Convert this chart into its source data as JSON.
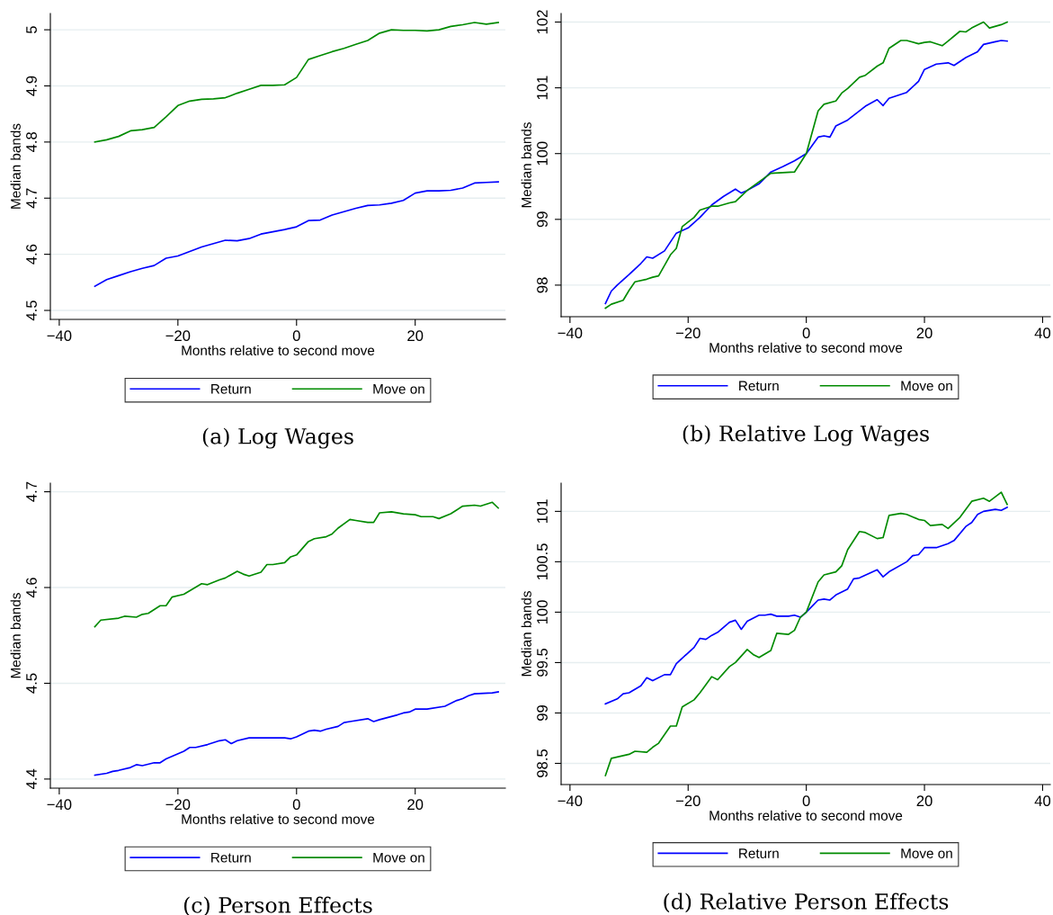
{
  "chart_data": [
    {
      "type": "line",
      "title": "(a) Log Wages",
      "xlabel": "Months relative to second move",
      "ylabel": "Median bands",
      "xlim": [
        -41.5,
        35.2
      ],
      "xticks": [
        -40,
        -20,
        0,
        20
      ],
      "ylim": [
        4.484,
        5.029
      ],
      "yticks": [
        4.5,
        4.6,
        4.7,
        4.8,
        4.9,
        5
      ],
      "grid": "y",
      "legend": "bottom",
      "line_style": "solid",
      "marker": "none",
      "series": [
        {
          "name": "Return",
          "color": "#0000ff",
          "x": [
            -34,
            -32,
            -30,
            -28,
            -26,
            -24,
            -22,
            -20,
            -18,
            -16,
            -14,
            -12,
            -10,
            -8,
            -6,
            -4,
            -2,
            0,
            2,
            4,
            6,
            8,
            10,
            12,
            14,
            16,
            18,
            20,
            22,
            24,
            26,
            28,
            30,
            32,
            34
          ],
          "values": [
            4.543,
            4.555,
            4.562,
            4.569,
            4.575,
            4.58,
            4.593,
            4.597,
            4.605,
            4.613,
            4.619,
            4.625,
            4.624,
            4.628,
            4.636,
            4.64,
            4.644,
            4.649,
            4.66,
            4.661,
            4.67,
            4.676,
            4.682,
            4.687,
            4.688,
            4.691,
            4.696,
            4.709,
            4.713,
            4.713,
            4.714,
            4.718,
            4.727,
            4.728,
            4.729
          ]
        },
        {
          "name": "Move on",
          "color": "#008b00",
          "x": [
            -34,
            -32,
            -30,
            -28,
            -26,
            -24,
            -22,
            -20,
            -18,
            -16,
            -14,
            -12,
            -10,
            -8,
            -6,
            -4,
            -2,
            0,
            2,
            4,
            6,
            8,
            10,
            12,
            14,
            16,
            18,
            20,
            22,
            24,
            26,
            28,
            30,
            32,
            34
          ],
          "values": [
            4.8,
            4.804,
            4.81,
            4.82,
            4.822,
            4.826,
            4.845,
            4.865,
            4.873,
            4.876,
            4.877,
            4.879,
            4.887,
            4.894,
            4.901,
            4.901,
            4.902,
            4.915,
            4.947,
            4.954,
            4.961,
            4.967,
            4.974,
            4.981,
            4.994,
            5.0,
            4.999,
            4.999,
            4.998,
            5.0,
            5.006,
            5.009,
            5.013,
            5.01,
            5.013
          ]
        }
      ]
    },
    {
      "type": "line",
      "title": "(b) Relative Log Wages",
      "xlabel": "Months relative to second move",
      "ylabel": "Median bands",
      "xlim": [
        -41.5,
        41.3
      ],
      "xticks": [
        -40,
        -20,
        0,
        20,
        40
      ],
      "ylim": [
        97.52,
        102.13
      ],
      "yticks": [
        98,
        99,
        100,
        101,
        102
      ],
      "grid": "y",
      "legend": "bottom",
      "line_style": "solid",
      "marker": "none",
      "series": [
        {
          "name": "Return",
          "color": "#0000ff",
          "x": [
            -34,
            -33,
            -32,
            -30,
            -28,
            -27,
            -26,
            -24,
            -22,
            -20,
            -18,
            -16,
            -14,
            -12,
            -11,
            -10,
            -8,
            -6,
            -4,
            -2,
            0,
            2,
            3,
            4,
            5,
            7,
            10,
            12,
            13,
            14,
            17,
            19,
            20,
            22,
            24,
            25,
            27,
            29,
            30,
            32,
            33,
            34
          ],
          "values": [
            97.72,
            97.91,
            98.0,
            98.16,
            98.33,
            98.43,
            98.41,
            98.52,
            98.79,
            98.87,
            99.03,
            99.22,
            99.35,
            99.46,
            99.4,
            99.44,
            99.54,
            99.72,
            99.8,
            99.89,
            100.0,
            100.25,
            100.27,
            100.25,
            100.42,
            100.51,
            100.72,
            100.82,
            100.73,
            100.84,
            100.93,
            101.1,
            101.28,
            101.36,
            101.38,
            101.34,
            101.46,
            101.55,
            101.66,
            101.7,
            101.72,
            101.71
          ]
        },
        {
          "name": "Move on",
          "color": "#008b00",
          "x": [
            -34,
            -33,
            -31,
            -30,
            -29,
            -27,
            -26,
            -25,
            -23,
            -22,
            -21,
            -19,
            -18,
            -16,
            -15,
            -13,
            -12,
            -10,
            -8,
            -6,
            -2,
            0,
            2,
            3,
            5,
            6,
            7,
            9,
            10,
            12,
            13,
            14,
            16,
            17,
            19,
            20,
            21,
            23,
            24,
            26,
            27,
            28,
            30,
            31,
            33,
            34
          ],
          "values": [
            97.65,
            97.71,
            97.77,
            97.92,
            98.05,
            98.09,
            98.12,
            98.14,
            98.46,
            98.56,
            98.89,
            99.03,
            99.14,
            99.2,
            99.2,
            99.25,
            99.27,
            99.44,
            99.57,
            99.7,
            99.72,
            100.0,
            100.65,
            100.75,
            100.8,
            100.92,
            100.99,
            101.16,
            101.19,
            101.33,
            101.38,
            101.6,
            101.72,
            101.72,
            101.67,
            101.69,
            101.7,
            101.64,
            101.71,
            101.86,
            101.85,
            101.91,
            102.0,
            101.91,
            101.96,
            102.0
          ]
        }
      ]
    },
    {
      "type": "line",
      "title": "(c) Person Effects",
      "xlabel": "Months relative to second move",
      "ylabel": "Median bands",
      "xlim": [
        -41.5,
        35.2
      ],
      "xticks": [
        -40,
        -20,
        0,
        20
      ],
      "ylim": [
        4.3905,
        4.709
      ],
      "yticks": [
        4.4,
        4.5,
        4.6,
        4.7
      ],
      "grid": "y",
      "legend": "bottom",
      "line_style": "solid",
      "marker": "none",
      "series": [
        {
          "name": "Return",
          "color": "#0000ff",
          "x": [
            -34,
            -32,
            -31,
            -30,
            -28,
            -27,
            -26,
            -24,
            -23,
            -22,
            -19,
            -18,
            -17,
            -15,
            -13,
            -12,
            -11,
            -10,
            -8,
            -6,
            -5,
            -2,
            -1,
            0,
            2,
            3,
            4,
            5,
            7,
            8,
            9,
            12,
            13,
            14,
            17,
            18,
            19,
            20,
            22,
            25,
            27,
            28,
            29,
            30,
            33,
            34
          ],
          "values": [
            4.404,
            4.406,
            4.408,
            4.409,
            4.412,
            4.415,
            4.414,
            4.417,
            4.417,
            4.421,
            4.429,
            4.433,
            4.433,
            4.436,
            4.44,
            4.441,
            4.437,
            4.44,
            4.443,
            4.443,
            4.443,
            4.443,
            4.442,
            4.444,
            4.45,
            4.451,
            4.45,
            4.452,
            4.455,
            4.459,
            4.46,
            4.463,
            4.46,
            4.462,
            4.467,
            4.469,
            4.47,
            4.473,
            4.473,
            4.476,
            4.482,
            4.484,
            4.487,
            4.489,
            4.49,
            4.491
          ]
        },
        {
          "name": "Move on",
          "color": "#008b00",
          "x": [
            -34,
            -33,
            -30,
            -29,
            -27,
            -26,
            -25,
            -23,
            -22,
            -21,
            -19,
            -16,
            -15,
            -13,
            -12,
            -10,
            -9,
            -8,
            -6,
            -5,
            -4,
            -2,
            -1,
            0,
            2,
            3,
            5,
            6,
            7,
            9,
            10,
            12,
            13,
            14,
            16,
            18,
            20,
            21,
            23,
            24,
            26,
            28,
            30,
            31,
            33,
            34
          ],
          "values": [
            4.559,
            4.566,
            4.568,
            4.57,
            4.569,
            4.572,
            4.573,
            4.581,
            4.581,
            4.59,
            4.593,
            4.604,
            4.603,
            4.608,
            4.61,
            4.617,
            4.614,
            4.612,
            4.616,
            4.624,
            4.624,
            4.626,
            4.632,
            4.634,
            4.648,
            4.651,
            4.653,
            4.656,
            4.662,
            4.671,
            4.67,
            4.668,
            4.668,
            4.678,
            4.679,
            4.677,
            4.676,
            4.674,
            4.674,
            4.672,
            4.677,
            4.685,
            4.686,
            4.685,
            4.689,
            4.683
          ]
        }
      ]
    },
    {
      "type": "line",
      "title": "(d) Relative Person Effects",
      "xlabel": "Months relative to second move",
      "ylabel": "Median bands",
      "xlim": [
        -41.5,
        41.3
      ],
      "xticks": [
        -40,
        -20,
        0,
        20,
        40
      ],
      "ylim": [
        98.29,
        101.28
      ],
      "yticks": [
        98.5,
        99,
        99.5,
        100,
        100.5,
        101
      ],
      "grid": "y",
      "legend": "bottom",
      "line_style": "solid",
      "marker": "none",
      "series": [
        {
          "name": "Return",
          "color": "#0000ff",
          "x": [
            -34,
            -32,
            -31,
            -30,
            -28,
            -27,
            -26,
            -24,
            -23,
            -22,
            -19,
            -18,
            -17,
            -16,
            -15,
            -13,
            -12,
            -11,
            -10,
            -8,
            -7,
            -6,
            -5,
            -3,
            -2,
            -1,
            0,
            2,
            3,
            4,
            5,
            7,
            8,
            9,
            12,
            13,
            14,
            17,
            18,
            19,
            20,
            22,
            24,
            25,
            27,
            28,
            29,
            30,
            32,
            33,
            34
          ],
          "values": [
            99.09,
            99.14,
            99.19,
            99.2,
            99.27,
            99.35,
            99.32,
            99.38,
            99.38,
            99.49,
            99.65,
            99.74,
            99.73,
            99.77,
            99.8,
            99.9,
            99.92,
            99.83,
            99.91,
            99.97,
            99.97,
            99.98,
            99.96,
            99.96,
            99.97,
            99.95,
            100.0,
            100.12,
            100.13,
            100.12,
            100.17,
            100.23,
            100.33,
            100.34,
            100.42,
            100.35,
            100.4,
            100.5,
            100.56,
            100.57,
            100.64,
            100.64,
            100.68,
            100.71,
            100.85,
            100.89,
            100.97,
            101.0,
            101.02,
            101.01,
            101.04
          ]
        },
        {
          "name": "Move on",
          "color": "#008b00",
          "x": [
            -34,
            -33,
            -30,
            -29,
            -27,
            -26,
            -25,
            -23,
            -22,
            -21,
            -19,
            -18,
            -16,
            -15,
            -13,
            -12,
            -10,
            -9,
            -8,
            -6,
            -5,
            -3,
            -2,
            -1,
            0,
            2,
            3,
            5,
            6,
            7,
            9,
            10,
            12,
            13,
            14,
            16,
            17,
            19,
            20,
            21,
            23,
            24,
            26,
            28,
            30,
            31,
            33,
            34
          ],
          "values": [
            98.38,
            98.55,
            98.59,
            98.62,
            98.61,
            98.66,
            98.7,
            98.87,
            98.87,
            99.06,
            99.13,
            99.2,
            99.36,
            99.33,
            99.46,
            99.5,
            99.63,
            99.58,
            99.55,
            99.62,
            99.79,
            99.78,
            99.82,
            99.95,
            100.0,
            100.3,
            100.37,
            100.4,
            100.46,
            100.62,
            100.8,
            100.79,
            100.73,
            100.74,
            100.96,
            100.98,
            100.97,
            100.92,
            100.91,
            100.86,
            100.87,
            100.83,
            100.94,
            101.1,
            101.13,
            101.1,
            101.19,
            101.07
          ]
        }
      ]
    }
  ]
}
